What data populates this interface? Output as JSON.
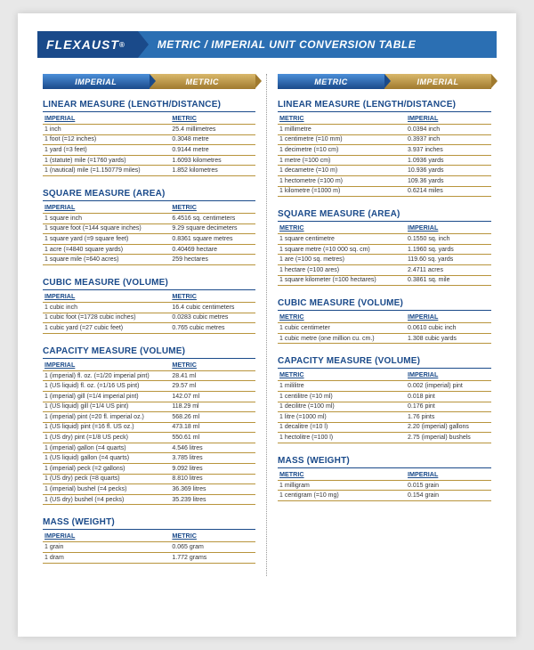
{
  "header": {
    "logo_text": "FLEXAUST",
    "logo_mark": "®",
    "title": "METRIC / IMPERIAL UNIT CONVERSION TABLE"
  },
  "left": {
    "tab1": "IMPERIAL",
    "tab2": "METRIC",
    "sections": [
      {
        "title": "LINEAR MEASURE (LENGTH/DISTANCE)",
        "col_a": "IMPERIAL",
        "col_b": "METRIC",
        "rows": [
          [
            "1 inch",
            "25.4 millimetres"
          ],
          [
            "1 foot (=12 inches)",
            "0.3048 metre"
          ],
          [
            "1 yard (=3 feet)",
            "0.9144 metre"
          ],
          [
            "1 (statute) mile (=1760 yards)",
            "1.6093 kilometres"
          ],
          [
            "1 (nautical) mile (=1.150779 miles)",
            "1.852 kilometres"
          ]
        ]
      },
      {
        "title": "SQUARE MEASURE (AREA)",
        "col_a": "IMPERIAL",
        "col_b": "METRIC",
        "rows": [
          [
            "1 square inch",
            "6.4516 sq. centimeters"
          ],
          [
            "1 square foot (=144 square inches)",
            "9.29 square decimeters"
          ],
          [
            "1 square yard (=9 square feet)",
            "0.8361 square metres"
          ],
          [
            "1 acre (=4840 square yards)",
            "0.40469 hectare"
          ],
          [
            "1 square mile (=640 acres)",
            "259 hectares"
          ]
        ]
      },
      {
        "title": "CUBIC MEASURE (VOLUME)",
        "col_a": "IMPERIAL",
        "col_b": "METRIC",
        "rows": [
          [
            "1 cubic inch",
            "16.4 cubic centimeters"
          ],
          [
            "1 cubic foot (=1728 cubic inches)",
            "0.0283 cubic metres"
          ],
          [
            "1 cubic yard (=27 cubic feet)",
            "0.765 cubic metres"
          ]
        ]
      },
      {
        "title": "CAPACITY MEASURE (VOLUME)",
        "col_a": "IMPERIAL",
        "col_b": "METRIC",
        "rows": [
          [
            "1 (imperial) fl. oz. (=1/20 imperial pint)",
            "28.41 ml"
          ],
          [
            "1 (US liquid) fl. oz. (=1/16 US pint)",
            "29.57 ml"
          ],
          [
            "1 (imperial) gill (=1/4 imperial pint)",
            "142.07 ml"
          ],
          [
            "1 (US liquid) gill (=1/4 US pint)",
            "118.29 ml"
          ],
          [
            "1 (imperial) pint (=20 fl. imperial oz.)",
            "568.26 ml"
          ],
          [
            "1 (US liquid) pint (=16 fl. US oz.)",
            "473.18 ml"
          ],
          [
            "1 (US dry) pint (=1/8 US peck)",
            "550.61 ml"
          ],
          [
            "1 (imperial) gallon (=4 quarts)",
            "4.546 litres"
          ],
          [
            "1 (US liquid) gallon (=4 quarts)",
            "3.785 litres"
          ],
          [
            "1 (imperial) peck (=2 gallons)",
            "9.092 litres"
          ],
          [
            "1 (US dry) peck (=8 quarts)",
            "8.810 litres"
          ],
          [
            "1 (imperial) bushel (=4 pecks)",
            "36.369 litres"
          ],
          [
            "1 (US dry) bushel (=4 pecks)",
            "35.239 litres"
          ]
        ]
      },
      {
        "title": "MASS (WEIGHT)",
        "col_a": "IMPERIAL",
        "col_b": "METRIC",
        "rows": [
          [
            "1 grain",
            "0.065 gram"
          ],
          [
            "1 dram",
            "1.772 grams"
          ]
        ]
      }
    ]
  },
  "right": {
    "tab1": "METRIC",
    "tab2": "IMPERIAL",
    "sections": [
      {
        "title": "LINEAR MEASURE (LENGTH/DISTANCE)",
        "col_a": "METRIC",
        "col_b": "IMPERIAL",
        "rows": [
          [
            "1 millimetre",
            "0.0394 inch"
          ],
          [
            "1 centimetre (=10 mm)",
            "0.3937 inch"
          ],
          [
            "1 decimetre (=10 cm)",
            "3.937 inches"
          ],
          [
            "1 metre (=100 cm)",
            "1.0936 yards"
          ],
          [
            "1 decametre (=10 m)",
            "10.936 yards"
          ],
          [
            "1 hectometre (=100 m)",
            "109.36 yards"
          ],
          [
            "1 kilometre (=1000 m)",
            "0.6214 miles"
          ]
        ]
      },
      {
        "title": "SQUARE MEASURE (AREA)",
        "col_a": "METRIC",
        "col_b": "IMPERIAL",
        "rows": [
          [
            "1 square centimetre",
            "0.1550 sq. inch"
          ],
          [
            "1 square metre (=10 000 sq. cm)",
            "1.1960 sq. yards"
          ],
          [
            "1 are (=100 sq. metres)",
            "119.60 sq. yards"
          ],
          [
            "1 hectare (=100 ares)",
            "2.4711 acres"
          ],
          [
            "1 square kilometer (=100 hectares)",
            "0.3861 sq. mile"
          ]
        ]
      },
      {
        "title": "CUBIC MEASURE (VOLUME)",
        "col_a": "METRIC",
        "col_b": "IMPERIAL",
        "rows": [
          [
            "1 cubic centimeter",
            "0.0610 cubic inch"
          ],
          [
            "1 cubic metre (one million cu. cm.)",
            "1.308 cubic yards"
          ]
        ]
      },
      {
        "title": "CAPACITY MEASURE (VOLUME)",
        "col_a": "METRIC",
        "col_b": "IMPERIAL",
        "rows": [
          [
            "1 mililitre",
            "0.002 (imperial) pint"
          ],
          [
            "1 centilitre (=10 ml)",
            "0.018 pint"
          ],
          [
            "1 decilitre (=100 ml)",
            "0.176 pint"
          ],
          [
            "1 litre (=1000 ml)",
            "1.76 pints"
          ],
          [
            "1 decalitre (=10 l)",
            "2.20 (imperial) gallons"
          ],
          [
            "1 hectolitre (=100 l)",
            "2.75 (imperial) bushels"
          ]
        ]
      },
      {
        "title": "MASS (WEIGHT)",
        "col_a": "METRIC",
        "col_b": "IMPERIAL",
        "rows": [
          [
            "1 milligram",
            "0.015 grain"
          ],
          [
            "1 centigram (=10 mg)",
            "0.154 grain"
          ]
        ]
      }
    ]
  }
}
